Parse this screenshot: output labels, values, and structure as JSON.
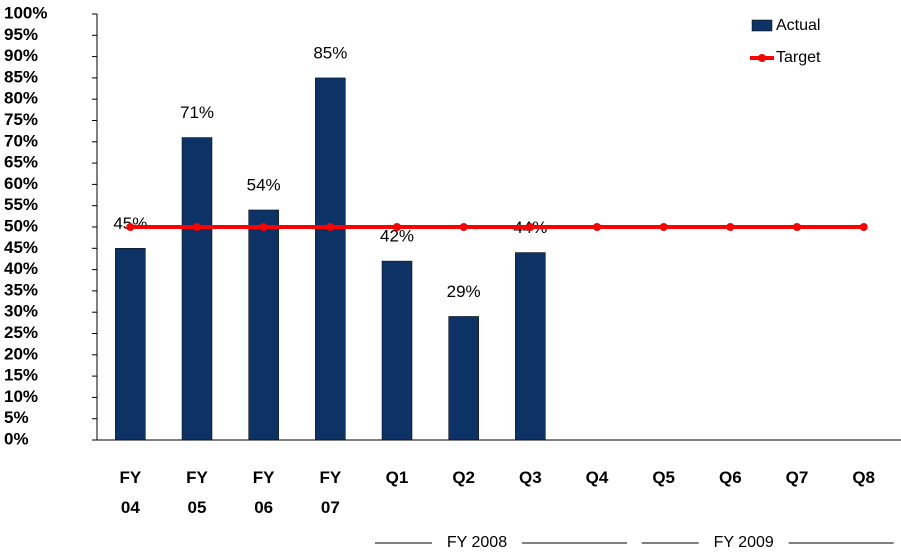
{
  "chart_data": {
    "type": "bar",
    "categories": [
      "FY 04",
      "FY 05",
      "FY 06",
      "FY 07",
      "Q1",
      "Q2",
      "Q3",
      "Q4",
      "Q5",
      "Q6",
      "Q7",
      "Q8"
    ],
    "series": [
      {
        "name": "Actual",
        "type": "bar",
        "color": "#0d3366",
        "values": [
          45,
          71,
          54,
          85,
          42,
          29,
          44,
          null,
          null,
          null,
          null,
          null
        ],
        "value_labels": [
          "45%",
          "71%",
          "54%",
          "85%",
          "42%",
          "29%",
          "44%",
          null,
          null,
          null,
          null,
          null
        ]
      },
      {
        "name": "Target",
        "type": "line",
        "color": "#ff0000",
        "values": [
          50,
          50,
          50,
          50,
          50,
          50,
          50,
          50,
          50,
          50,
          50,
          50
        ]
      }
    ],
    "ylim": [
      0,
      100
    ],
    "yticks": [
      {
        "value": 0,
        "label": "0%"
      },
      {
        "value": 5,
        "label": "5%"
      },
      {
        "value": 10,
        "label": "10%"
      },
      {
        "value": 15,
        "label": "15%"
      },
      {
        "value": 20,
        "label": "20%"
      },
      {
        "value": 25,
        "label": "25%"
      },
      {
        "value": 30,
        "label": "30%"
      },
      {
        "value": 35,
        "label": "35%"
      },
      {
        "value": 40,
        "label": "40%"
      },
      {
        "value": 45,
        "label": "45%"
      },
      {
        "value": 50,
        "label": "50%"
      },
      {
        "value": 55,
        "label": "55%"
      },
      {
        "value": 60,
        "label": "60%"
      },
      {
        "value": 65,
        "label": "65%"
      },
      {
        "value": 70,
        "label": "70%"
      },
      {
        "value": 75,
        "label": "75%"
      },
      {
        "value": 80,
        "label": "80%"
      },
      {
        "value": 85,
        "label": "85%"
      },
      {
        "value": 90,
        "label": "90%"
      },
      {
        "value": 95,
        "label": "95%"
      },
      {
        "value": 100,
        "label": "100%"
      }
    ],
    "groups": [
      {
        "label": "FY 2008",
        "span": [
          "Q1",
          "Q4"
        ]
      },
      {
        "label": "FY 2009",
        "span": [
          "Q5",
          "Q8"
        ]
      }
    ],
    "legend": "upper right",
    "grid": false
  }
}
